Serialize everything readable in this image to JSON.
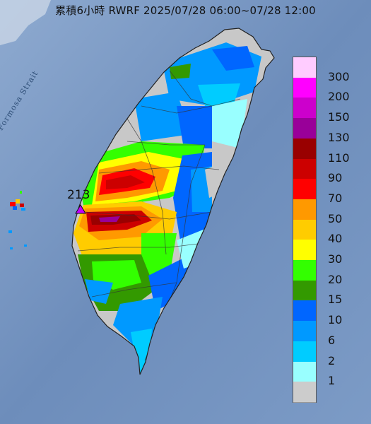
{
  "title": "累積6小時 RWRF 2025/07/28 06:00~07/28 12:00",
  "strait_label": "Formosa Strait",
  "max_marker": {
    "value": "213",
    "color": "#c000ff"
  },
  "legend": [
    {
      "label": "300",
      "color": "#ffccff"
    },
    {
      "label": "200",
      "color": "#ff00ff"
    },
    {
      "label": "150",
      "color": "#cc00cc"
    },
    {
      "label": "130",
      "color": "#990099"
    },
    {
      "label": "110",
      "color": "#990000"
    },
    {
      "label": "90",
      "color": "#cc0000"
    },
    {
      "label": "70",
      "color": "#ff0000"
    },
    {
      "label": "50",
      "color": "#ff9900"
    },
    {
      "label": "40",
      "color": "#ffcc00"
    },
    {
      "label": "30",
      "color": "#ffff00"
    },
    {
      "label": "20",
      "color": "#33ff00"
    },
    {
      "label": "15",
      "color": "#339900"
    },
    {
      "label": "10",
      "color": "#0066ff"
    },
    {
      "label": "6",
      "color": "#0099ff"
    },
    {
      "label": "2",
      "color": "#00ccff"
    },
    {
      "label": "1",
      "color": "#99ffff"
    },
    {
      "label": "",
      "color": "#cccccc"
    }
  ]
}
